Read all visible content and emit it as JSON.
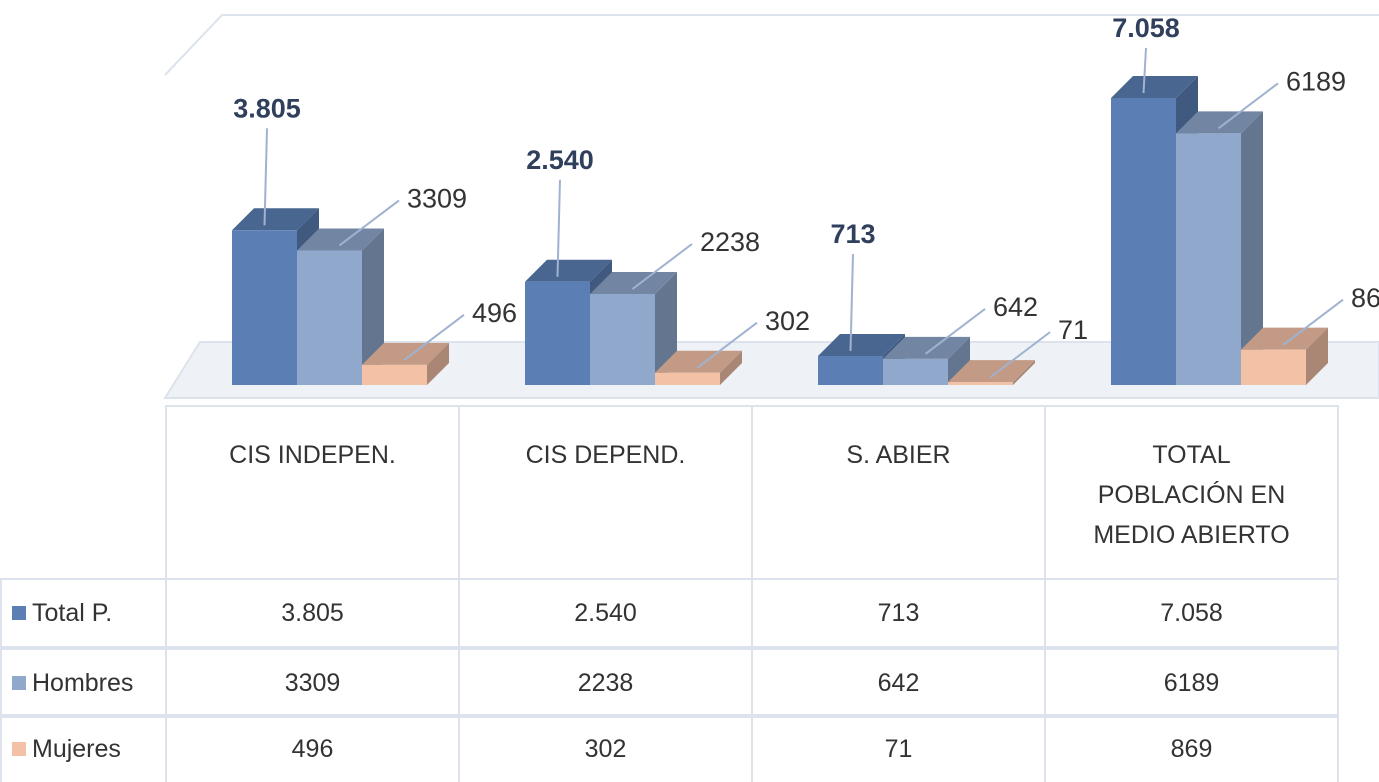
{
  "chart_data": {
    "type": "bar3d",
    "categories": [
      "CIS INDEPEN.",
      "CIS DEPEND.",
      "S. ABIER",
      "TOTAL POBLACIÓN  EN MEDIO ABIERTO"
    ],
    "series": [
      {
        "name": "Total P.",
        "color": "#5b7fb5",
        "values": [
          3805,
          2540,
          713,
          7058
        ],
        "value_labels": [
          "3.805",
          "2.540",
          "713",
          "7.058"
        ]
      },
      {
        "name": "Hombres",
        "color": "#8fa8cc",
        "values": [
          3309,
          2238,
          642,
          6189
        ]
      },
      {
        "name": "Mujeres",
        "color": "#f2c1a6",
        "values": [
          496,
          302,
          71,
          869
        ]
      }
    ],
    "data_table": true
  }
}
